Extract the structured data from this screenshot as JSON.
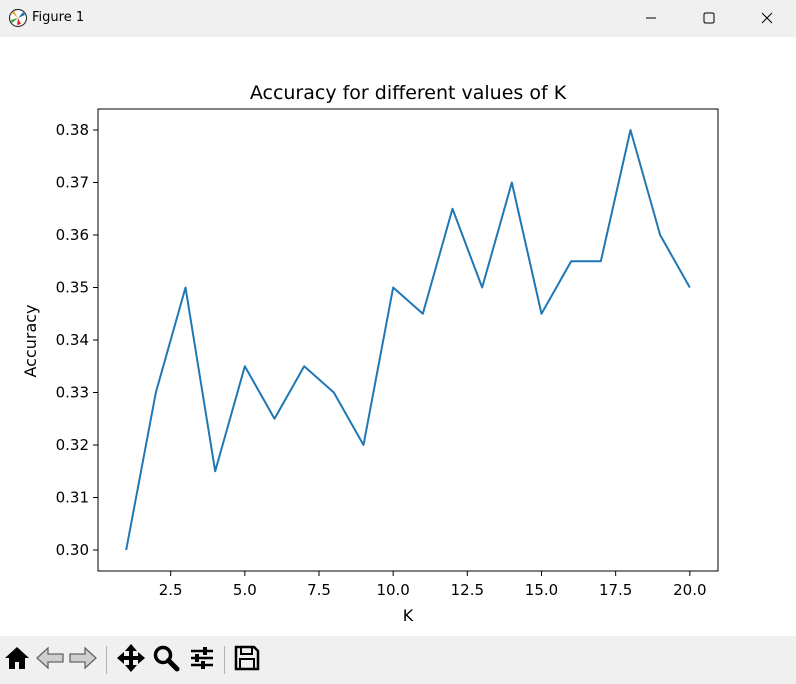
{
  "window": {
    "title": "Figure 1",
    "app_icon": "matplotlib-icon",
    "controls": [
      "minimize-icon",
      "maximize-icon",
      "close-icon"
    ]
  },
  "toolbar": {
    "buttons": [
      "home-icon",
      "back-icon",
      "forward-icon",
      "pan-icon",
      "zoom-icon",
      "configure-subplots-icon",
      "save-icon"
    ]
  },
  "colors": {
    "line": "#1f77b4",
    "toolbar_bg": "#f0f0f0"
  },
  "chart_data": {
    "type": "line",
    "title": "Accuracy for different values of K",
    "xlabel": "K",
    "ylabel": "Accuracy",
    "x": [
      1,
      2,
      3,
      4,
      5,
      6,
      7,
      8,
      9,
      10,
      11,
      12,
      13,
      14,
      15,
      16,
      17,
      18,
      19,
      20
    ],
    "series": [
      {
        "values": [
          0.3,
          0.33,
          0.35,
          0.315,
          0.335,
          0.325,
          0.335,
          0.33,
          0.32,
          0.35,
          0.345,
          0.365,
          0.35,
          0.37,
          0.345,
          0.355,
          0.355,
          0.38,
          0.36,
          0.35
        ]
      }
    ],
    "xlim": [
      0.05,
      20.95
    ],
    "ylim": [
      0.296,
      0.384
    ],
    "xticks": [
      2.5,
      5.0,
      7.5,
      10.0,
      12.5,
      15.0,
      17.5,
      20.0
    ],
    "xtick_labels": [
      "2.5",
      "5.0",
      "7.5",
      "10.0",
      "12.5",
      "15.0",
      "17.5",
      "20.0"
    ],
    "yticks": [
      0.3,
      0.31,
      0.32,
      0.33,
      0.34,
      0.35,
      0.36,
      0.37,
      0.38
    ],
    "ytick_labels": [
      "0.30",
      "0.31",
      "0.32",
      "0.33",
      "0.34",
      "0.35",
      "0.36",
      "0.37",
      "0.38"
    ],
    "grid": false,
    "legend": "none"
  }
}
